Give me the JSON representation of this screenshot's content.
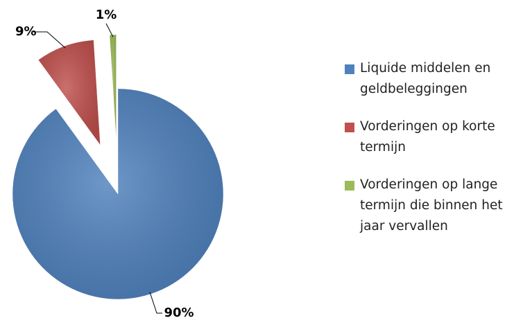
{
  "chart_data": {
    "type": "pie",
    "categories": [
      "Liquide middelen en geldbeleggingen",
      "Vorderingen op korte termijn",
      "Vorderingen op lange termijn die binnen het jaar vervallen"
    ],
    "values": [
      90,
      9,
      1
    ],
    "value_labels": [
      "90%",
      "9%",
      "1%"
    ],
    "colors": [
      "#4f81bd",
      "#c0504d",
      "#9bbb59"
    ],
    "legend": "right"
  }
}
